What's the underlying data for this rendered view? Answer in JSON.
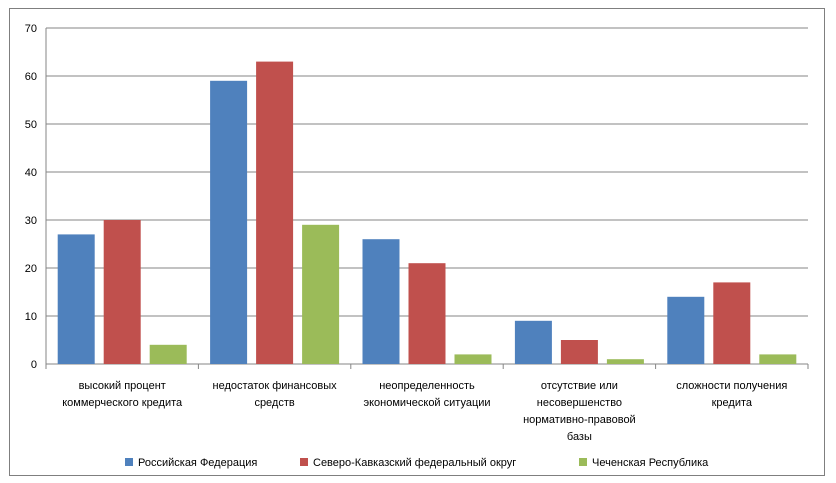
{
  "chart_data": {
    "type": "bar",
    "categories": [
      [
        "высокий процент",
        "коммерческого кредита"
      ],
      [
        "недостаток финансовых",
        "средств"
      ],
      [
        "неопределенность",
        "экономической ситуации"
      ],
      [
        "отсутствие или",
        "несовершенство",
        "нормативно-правовой",
        "базы"
      ],
      [
        "сложности получения",
        "кредита"
      ]
    ],
    "series": [
      {
        "name": "Российская Федерация",
        "color": "#4f81bd",
        "values": [
          27,
          59,
          26,
          9,
          14
        ]
      },
      {
        "name": "Северо-Кавказский федеральный округ",
        "color": "#c0504d",
        "values": [
          30,
          63,
          21,
          5,
          17
        ]
      },
      {
        "name": "Чеченская Республика",
        "color": "#9bbb59",
        "values": [
          4,
          29,
          2,
          1,
          2
        ]
      }
    ],
    "ylim": [
      0,
      70
    ],
    "yticks": [
      "0",
      "10",
      "20",
      "30",
      "40",
      "50",
      "60",
      "70"
    ],
    "grid": true,
    "legend_position": "bottom",
    "title": "",
    "xlabel": "",
    "ylabel": ""
  }
}
